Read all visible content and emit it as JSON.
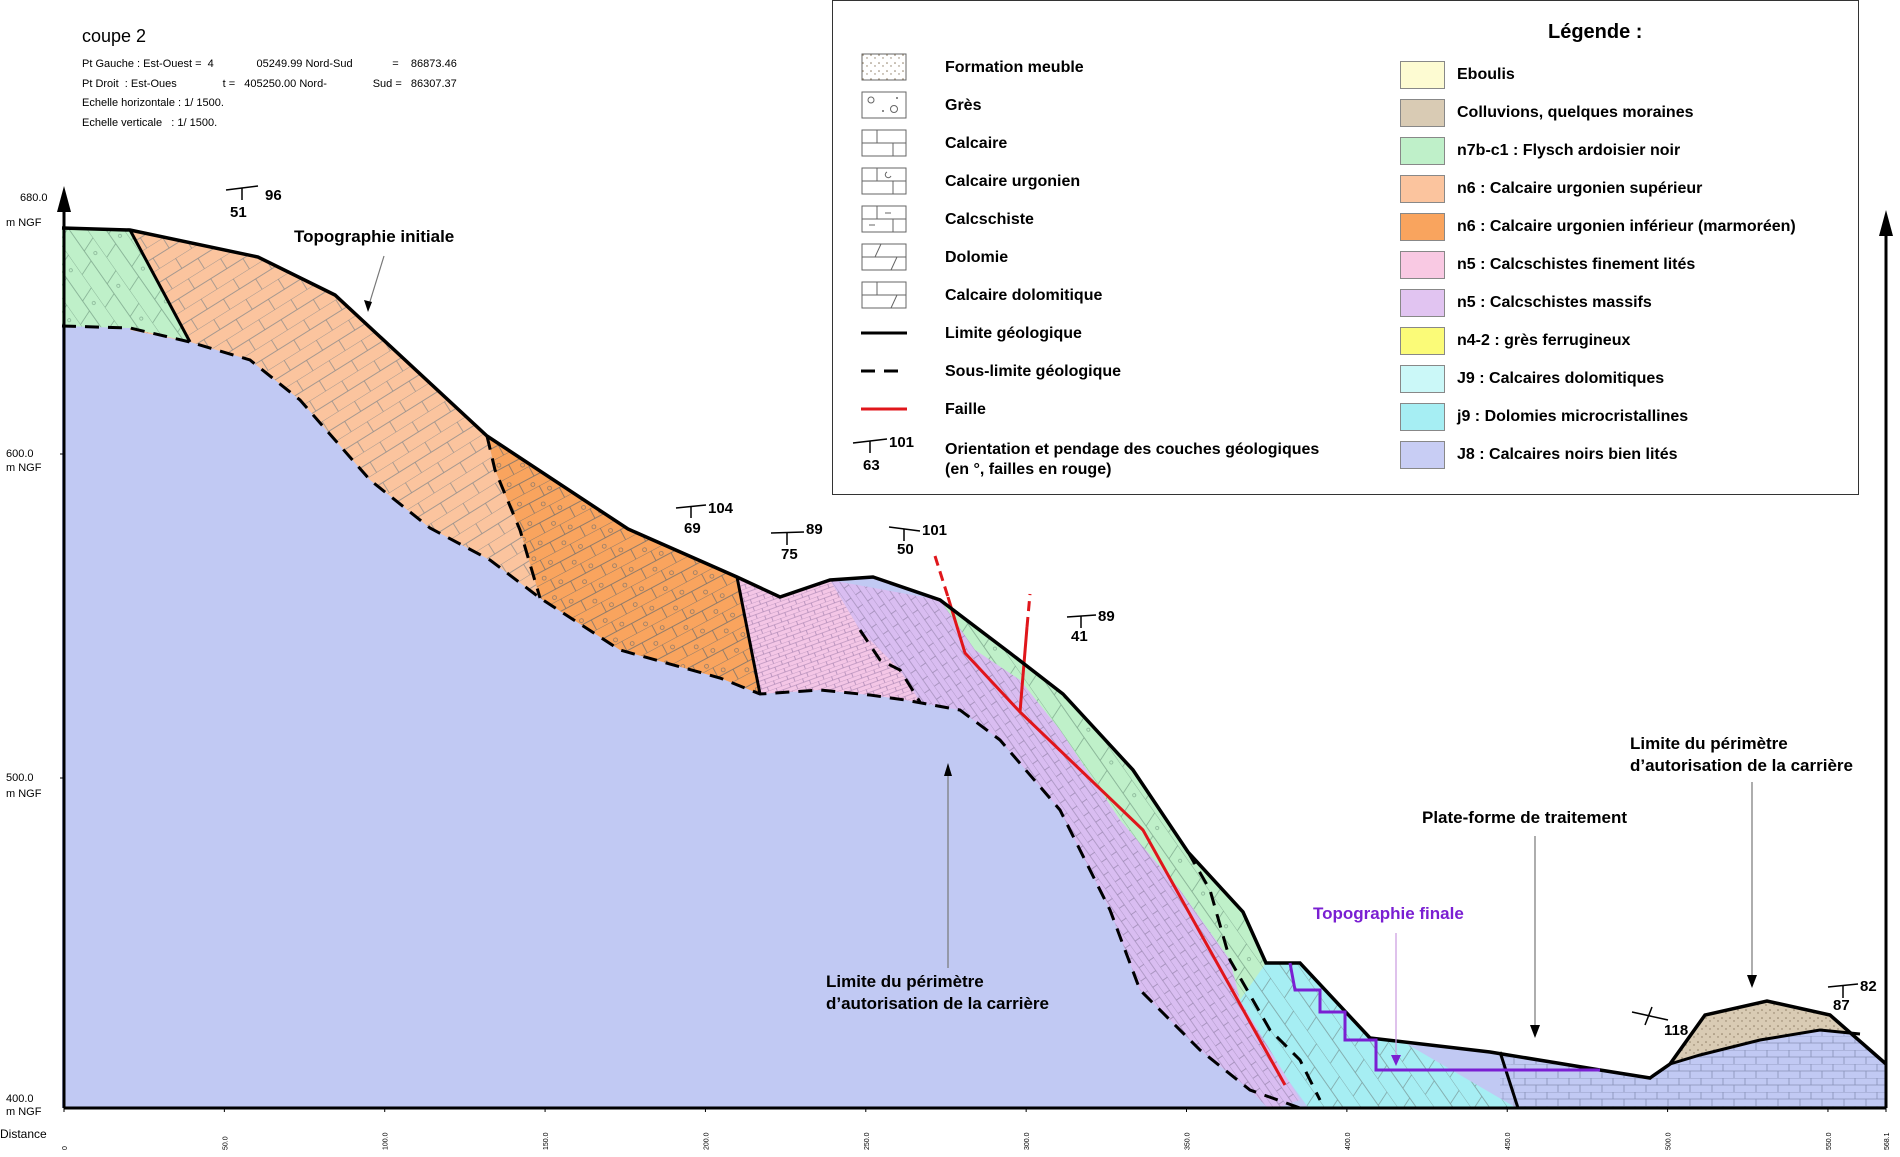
{
  "header": {
    "title": "coupe 2",
    "line1": "Pt Gauche : Est-Ouest =  4              05249.99 Nord-Sud             =    86873.46",
    "line2": "Pt Droit  : Est-Oues               t =   405250.00 Nord-               Sud =   86307.37",
    "line3": "Echelle horizontale : 1/ 1500.",
    "line4": "Echelle verticale   : 1/ 1500."
  },
  "legend": {
    "title": "Légende :",
    "left_items": [
      {
        "label": "Formation meuble",
        "pattern": "meuble"
      },
      {
        "label": "Grès",
        "pattern": "gres"
      },
      {
        "label": "Calcaire",
        "pattern": "calcaire"
      },
      {
        "label": "Calcaire urgonien",
        "pattern": "urgonien"
      },
      {
        "label": "Calcschiste",
        "pattern": "calcschiste"
      },
      {
        "label": "Dolomie",
        "pattern": "dolomie"
      },
      {
        "label": "Calcaire dolomitique",
        "pattern": "caldolo"
      },
      {
        "label": "Limite géologique",
        "pattern": "line-solid"
      },
      {
        "label": "Sous-limite géologique",
        "pattern": "line-dashed"
      },
      {
        "label": "Faille",
        "pattern": "line-red"
      },
      {
        "label": "Orientation et pendage des couches géologiques",
        "label2": "(en °, failles en rouge)",
        "pattern": "dip",
        "dip_top": "101",
        "dip_bottom": "63"
      }
    ],
    "right_items": [
      {
        "label": "Eboulis",
        "color": "#fdfbd2"
      },
      {
        "label": "Colluvions, quelques moraines",
        "color": "#d9cbb4"
      },
      {
        "label": "n7b-c1 : Flysch ardoisier noir",
        "color": "#bff0c9"
      },
      {
        "label": "n6 : Calcaire urgonien supérieur",
        "color": "#fbc49e"
      },
      {
        "label": "n6 : Calcaire urgonien inférieur (marmoréen)",
        "color": "#f9a45e"
      },
      {
        "label": "n5 : Calcschistes finement lités",
        "color": "#f9c9e3"
      },
      {
        "label": "n5 : Calcschistes massifs",
        "color": "#e1c4f1"
      },
      {
        "label": "n4-2 : grès ferrugineux",
        "color": "#fbfb78"
      },
      {
        "label": "J9 : Calcaires dolomitiques",
        "color": "#cbf8f8"
      },
      {
        "label": "j9 : Dolomies microcristallines",
        "color": "#a6eef3"
      },
      {
        "label": "J8 : Calcaires noirs bien lités",
        "color": "#c8cdf4"
      }
    ]
  },
  "axis": {
    "y_ticks": [
      {
        "value": "680.0",
        "unit": "m NGF"
      },
      {
        "value": "600.0",
        "unit": "m NGF"
      },
      {
        "value": "500.0",
        "unit": "m NGF"
      },
      {
        "value": "400.0",
        "unit": "m NGF"
      }
    ],
    "x_title": "Distance",
    "x_ticks": [
      "0",
      "50.0",
      "100.0",
      "150.0",
      "200.0",
      "250.0",
      "300.0",
      "350.0",
      "400.0",
      "450.0",
      "500.0",
      "550.0",
      "568.1"
    ]
  },
  "annotations": {
    "topo_initiale": "Topographie initiale",
    "topo_finale": "Topographie finale",
    "limite_a_1": "Limite du périmètre",
    "limite_a_2": "d’autorisation de la carrière",
    "limite_b_1": "Limite du périmètre",
    "limite_b_2": "d’autorisation de la carrière",
    "plateforme": "Plate-forme de traitement"
  },
  "dip_markers": [
    {
      "top": "96",
      "bottom": "51",
      "fault": false
    },
    {
      "top": "104",
      "bottom": "69",
      "fault": false
    },
    {
      "top": "89",
      "bottom": "75",
      "fault": false
    },
    {
      "top": "101",
      "bottom": "50",
      "fault": false
    },
    {
      "top": "89",
      "bottom": "41",
      "fault": false
    },
    {
      "top": "118",
      "bottom": "",
      "fault": false
    },
    {
      "top": "82",
      "bottom": "87",
      "fault": false
    }
  ],
  "colors": {
    "flysch": "#bff0c9",
    "urgonien_sup": "#fbc49e",
    "urgonien_inf": "#f9a45e",
    "calcschiste_fin": "#f4c6e6",
    "calcschiste_massif": "#d9bdf1",
    "calc_dolo": "#cbf8f8",
    "dolomie": "#a6eef3",
    "j8": "#c1c9f3",
    "colluvions": "#d9cbb4",
    "fault": "#e0161b",
    "final_topo": "#7a1fd2"
  }
}
